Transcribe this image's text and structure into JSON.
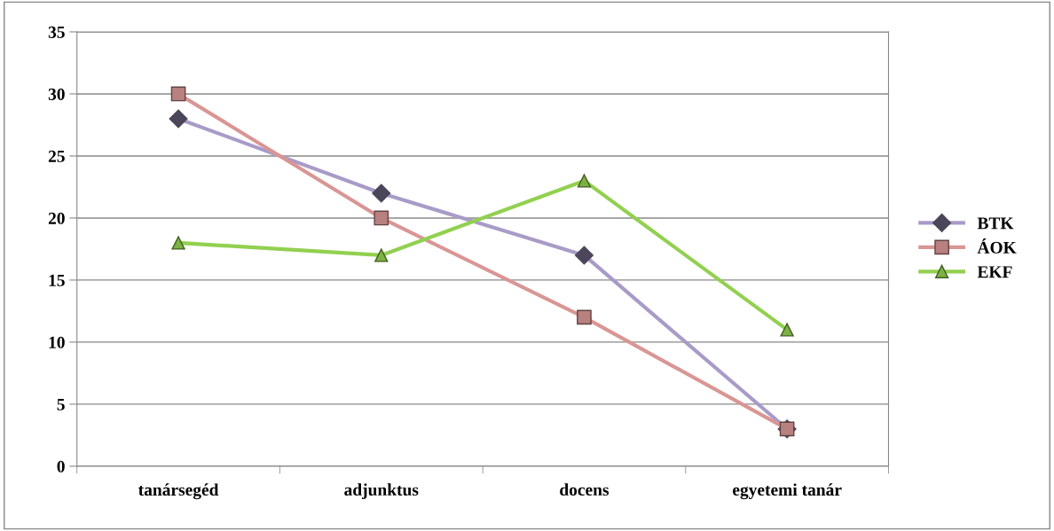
{
  "chart_data": {
    "type": "line",
    "categories": [
      "tanársegéd",
      "adjunktus",
      "docens",
      "egyetemi tanár"
    ],
    "series": [
      {
        "name": "BTK",
        "color": "#a99bc8",
        "marker": "diamond",
        "values": [
          28,
          22,
          17,
          3
        ]
      },
      {
        "name": "ÁOK",
        "color": "#d99694",
        "marker": "square",
        "values": [
          30,
          20,
          12,
          3
        ]
      },
      {
        "name": "EKF",
        "color": "#92d050",
        "marker": "triangle",
        "values": [
          18,
          17,
          23,
          11
        ]
      }
    ],
    "ylim": [
      0,
      35
    ],
    "yticks": [
      0,
      5,
      10,
      15,
      20,
      25,
      30,
      35
    ],
    "grid": "y",
    "legend": "right",
    "line_style": "solid"
  }
}
